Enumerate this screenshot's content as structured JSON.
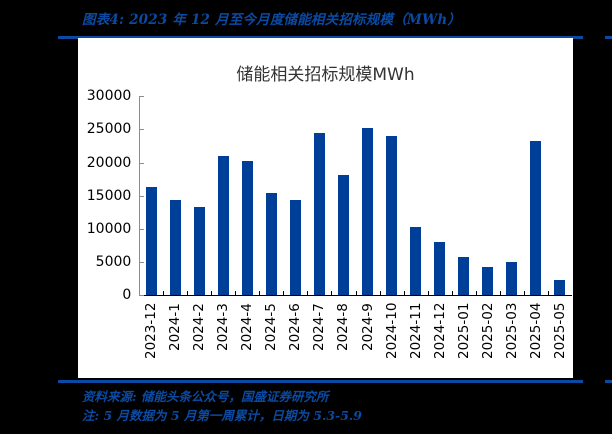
{
  "header": {
    "figure_title": "图表4:  2023 年 12 月至今月度储能相关招标规模（MWh）"
  },
  "footer": {
    "source": "资料来源:  储能头条公众号，国盛证券研究所",
    "note": "注:  5 月数据为 5 月第一周累计，日期为 5.3-5.9"
  },
  "colors": {
    "bar": "#003F98",
    "accent": "#0B4AA2",
    "background": "#000000",
    "panel": "#FFFFFF"
  },
  "chart_data": {
    "type": "bar",
    "title": "储能相关招标规模MWh",
    "xlabel": "",
    "ylabel": "",
    "ylim": [
      0,
      30000
    ],
    "yticks": [
      "0",
      "5000",
      "10000",
      "15000",
      "20000",
      "25000",
      "30000"
    ],
    "grid": false,
    "legend": null,
    "categories": [
      "2023-12",
      "2024-1",
      "2024-2",
      "2024-3",
      "2024-4",
      "2024-5",
      "2024-6",
      "2024-7",
      "2024-8",
      "2024-9",
      "2024-10",
      "2024-11",
      "2024-12",
      "2025-01",
      "2025-02",
      "2025-03",
      "2025-04",
      "2025-05"
    ],
    "values": [
      16300,
      14400,
      13250,
      21000,
      20250,
      15400,
      14400,
      24500,
      18100,
      25250,
      23950,
      10250,
      8000,
      5700,
      4200,
      5000,
      23200,
      2250
    ]
  }
}
